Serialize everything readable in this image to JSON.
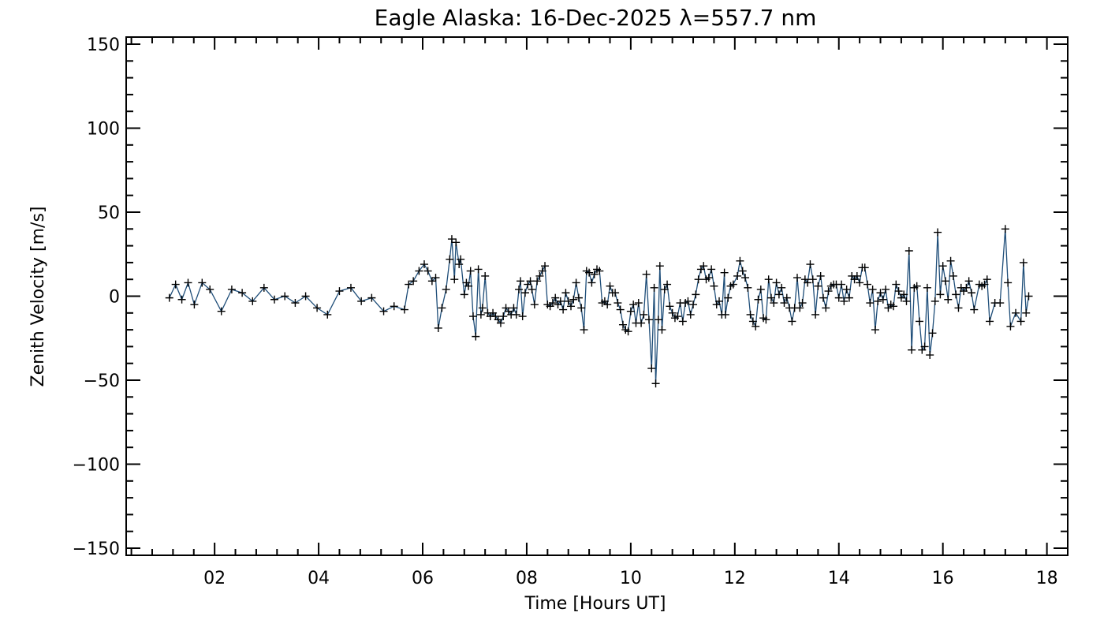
{
  "chart_data": {
    "type": "line",
    "title": "Eagle Alaska: 16-Dec-2025 λ=557.7 nm",
    "xlabel": "Time [Hours UT]",
    "ylabel": "Zenith Velocity [m/s]",
    "xlim": [
      0.3,
      18.4
    ],
    "ylim": [
      -150,
      150
    ],
    "grid": false,
    "marker": "plus",
    "line_color": "#1f4e79",
    "marker_color": "#000000",
    "xticks": [
      {
        "value": 2,
        "label": "02"
      },
      {
        "value": 4,
        "label": "04"
      },
      {
        "value": 6,
        "label": "06"
      },
      {
        "value": 8,
        "label": "08"
      },
      {
        "value": 10,
        "label": "10"
      },
      {
        "value": 12,
        "label": "12"
      },
      {
        "value": 14,
        "label": "14"
      },
      {
        "value": 16,
        "label": "16"
      },
      {
        "value": 18,
        "label": "18"
      }
    ],
    "yticks": [
      {
        "value": 150,
        "label": "150"
      },
      {
        "value": 100,
        "label": "100"
      },
      {
        "value": 50,
        "label": "50"
      },
      {
        "value": 0,
        "label": "0"
      },
      {
        "value": -50,
        "label": "−50"
      },
      {
        "value": -100,
        "label": "−100"
      },
      {
        "value": -150,
        "label": "−150"
      }
    ],
    "series": [
      {
        "name": "Zenith Velocity",
        "points": [
          [
            1.13,
            -1
          ],
          [
            1.25,
            7
          ],
          [
            1.37,
            -2
          ],
          [
            1.49,
            8
          ],
          [
            1.61,
            -5
          ],
          [
            1.76,
            8
          ],
          [
            1.91,
            4
          ],
          [
            2.13,
            -9
          ],
          [
            2.33,
            4
          ],
          [
            2.53,
            2
          ],
          [
            2.73,
            -3
          ],
          [
            2.95,
            5
          ],
          [
            3.15,
            -2
          ],
          [
            3.35,
            0
          ],
          [
            3.55,
            -4
          ],
          [
            3.75,
            0
          ],
          [
            3.97,
            -7
          ],
          [
            4.17,
            -11
          ],
          [
            4.4,
            3
          ],
          [
            4.62,
            5
          ],
          [
            4.82,
            -3
          ],
          [
            5.02,
            -1
          ],
          [
            5.25,
            -9
          ],
          [
            5.45,
            -6
          ],
          [
            5.65,
            -8
          ],
          [
            5.73,
            7
          ],
          [
            5.82,
            9
          ],
          [
            5.93,
            15
          ],
          [
            6.03,
            19
          ],
          [
            6.1,
            15
          ],
          [
            6.18,
            9
          ],
          [
            6.25,
            11
          ],
          [
            6.3,
            -19
          ],
          [
            6.37,
            -7
          ],
          [
            6.45,
            4
          ],
          [
            6.52,
            22
          ],
          [
            6.56,
            34
          ],
          [
            6.61,
            10
          ],
          [
            6.64,
            32
          ],
          [
            6.7,
            19
          ],
          [
            6.73,
            22
          ],
          [
            6.8,
            1
          ],
          [
            6.84,
            8
          ],
          [
            6.88,
            6
          ],
          [
            6.92,
            15
          ],
          [
            6.97,
            -12
          ],
          [
            7.02,
            -24
          ],
          [
            7.07,
            16
          ],
          [
            7.12,
            -11
          ],
          [
            7.15,
            -7
          ],
          [
            7.2,
            12
          ],
          [
            7.25,
            -10
          ],
          [
            7.3,
            -12
          ],
          [
            7.35,
            -10
          ],
          [
            7.4,
            -12
          ],
          [
            7.45,
            -14
          ],
          [
            7.5,
            -16
          ],
          [
            7.55,
            -12
          ],
          [
            7.6,
            -7
          ],
          [
            7.65,
            -9
          ],
          [
            7.7,
            -11
          ],
          [
            7.75,
            -7
          ],
          [
            7.8,
            -11
          ],
          [
            7.85,
            4
          ],
          [
            7.88,
            9
          ],
          [
            7.92,
            -12
          ],
          [
            7.97,
            2
          ],
          [
            8.02,
            7
          ],
          [
            8.07,
            9
          ],
          [
            8.1,
            4
          ],
          [
            8.15,
            -5
          ],
          [
            8.2,
            9
          ],
          [
            8.25,
            12
          ],
          [
            8.3,
            15
          ],
          [
            8.35,
            18
          ],
          [
            8.4,
            -5
          ],
          [
            8.45,
            -6
          ],
          [
            8.5,
            -4
          ],
          [
            8.55,
            -1
          ],
          [
            8.6,
            -5
          ],
          [
            8.65,
            -3
          ],
          [
            8.7,
            -8
          ],
          [
            8.75,
            2
          ],
          [
            8.8,
            -3
          ],
          [
            8.85,
            -6
          ],
          [
            8.9,
            -2
          ],
          [
            8.95,
            8
          ],
          [
            9.0,
            -1
          ],
          [
            9.05,
            -7
          ],
          [
            9.1,
            -20
          ],
          [
            9.15,
            15
          ],
          [
            9.2,
            14
          ],
          [
            9.25,
            8
          ],
          [
            9.3,
            13
          ],
          [
            9.35,
            16
          ],
          [
            9.4,
            15
          ],
          [
            9.45,
            -4
          ],
          [
            9.5,
            -3
          ],
          [
            9.55,
            -5
          ],
          [
            9.6,
            6
          ],
          [
            9.65,
            2
          ],
          [
            9.7,
            2
          ],
          [
            9.75,
            -4
          ],
          [
            9.8,
            -8
          ],
          [
            9.85,
            -17
          ],
          [
            9.9,
            -20
          ],
          [
            9.95,
            -21
          ],
          [
            10.0,
            -9
          ],
          [
            10.05,
            -5
          ],
          [
            10.1,
            -16
          ],
          [
            10.15,
            -4
          ],
          [
            10.2,
            -16
          ],
          [
            10.25,
            -11
          ],
          [
            10.3,
            13
          ],
          [
            10.35,
            -14
          ],
          [
            10.4,
            -43
          ],
          [
            10.45,
            5
          ],
          [
            10.48,
            -52
          ],
          [
            10.53,
            -14
          ],
          [
            10.56,
            18
          ],
          [
            10.6,
            -20
          ],
          [
            10.65,
            4
          ],
          [
            10.7,
            7
          ],
          [
            10.75,
            -6
          ],
          [
            10.8,
            -10
          ],
          [
            10.85,
            -13
          ],
          [
            10.9,
            -12
          ],
          [
            10.95,
            -4
          ],
          [
            11.0,
            -15
          ],
          [
            11.05,
            -4
          ],
          [
            11.1,
            -3
          ],
          [
            11.15,
            -11
          ],
          [
            11.2,
            -5
          ],
          [
            11.25,
            1
          ],
          [
            11.3,
            10
          ],
          [
            11.35,
            16
          ],
          [
            11.4,
            18
          ],
          [
            11.45,
            10
          ],
          [
            11.5,
            11
          ],
          [
            11.55,
            16
          ],
          [
            11.6,
            6
          ],
          [
            11.65,
            -5
          ],
          [
            11.7,
            -3
          ],
          [
            11.75,
            -11
          ],
          [
            11.8,
            14
          ],
          [
            11.82,
            -11
          ],
          [
            11.87,
            -1
          ],
          [
            11.92,
            6
          ],
          [
            11.97,
            7
          ],
          [
            12.05,
            12
          ],
          [
            12.1,
            21
          ],
          [
            12.15,
            15
          ],
          [
            12.2,
            11
          ],
          [
            12.25,
            5
          ],
          [
            12.3,
            -11
          ],
          [
            12.35,
            -15
          ],
          [
            12.4,
            -18
          ],
          [
            12.45,
            -2
          ],
          [
            12.5,
            4
          ],
          [
            12.55,
            -13
          ],
          [
            12.6,
            -14
          ],
          [
            12.65,
            10
          ],
          [
            12.7,
            -1
          ],
          [
            12.75,
            -4
          ],
          [
            12.8,
            8
          ],
          [
            12.85,
            1
          ],
          [
            12.9,
            5
          ],
          [
            12.95,
            -4
          ],
          [
            13.0,
            -1
          ],
          [
            13.05,
            -7
          ],
          [
            13.1,
            -15
          ],
          [
            13.15,
            -7
          ],
          [
            13.2,
            11
          ],
          [
            13.25,
            -7
          ],
          [
            13.3,
            -4
          ],
          [
            13.35,
            10
          ],
          [
            13.4,
            8
          ],
          [
            13.45,
            19
          ],
          [
            13.5,
            10
          ],
          [
            13.55,
            -11
          ],
          [
            13.6,
            6
          ],
          [
            13.65,
            12
          ],
          [
            13.7,
            -1
          ],
          [
            13.75,
            -7
          ],
          [
            13.8,
            3
          ],
          [
            13.85,
            6
          ],
          [
            13.9,
            7
          ],
          [
            13.95,
            7
          ],
          [
            14.0,
            -1
          ],
          [
            14.05,
            7
          ],
          [
            14.1,
            -3
          ],
          [
            14.15,
            4
          ],
          [
            14.2,
            -1
          ],
          [
            14.25,
            12
          ],
          [
            14.3,
            10
          ],
          [
            14.35,
            12
          ],
          [
            14.4,
            8
          ],
          [
            14.45,
            17
          ],
          [
            14.5,
            17
          ],
          [
            14.55,
            7
          ],
          [
            14.6,
            -4
          ],
          [
            14.65,
            4
          ],
          [
            14.7,
            -20
          ],
          [
            14.75,
            -3
          ],
          [
            14.8,
            2
          ],
          [
            14.85,
            -2
          ],
          [
            14.9,
            4
          ],
          [
            14.95,
            -7
          ],
          [
            15.0,
            -5
          ],
          [
            15.05,
            -6
          ],
          [
            15.1,
            7
          ],
          [
            15.15,
            3
          ],
          [
            15.2,
            -1
          ],
          [
            15.25,
            1
          ],
          [
            15.3,
            -3
          ],
          [
            15.35,
            27
          ],
          [
            15.4,
            -32
          ],
          [
            15.45,
            5
          ],
          [
            15.5,
            6
          ],
          [
            15.55,
            -15
          ],
          [
            15.6,
            -32
          ],
          [
            15.65,
            -30
          ],
          [
            15.7,
            5
          ],
          [
            15.75,
            -35
          ],
          [
            15.8,
            -22
          ],
          [
            15.85,
            -3
          ],
          [
            15.9,
            38
          ],
          [
            15.95,
            1
          ],
          [
            16.0,
            18
          ],
          [
            16.05,
            9
          ],
          [
            16.1,
            -2
          ],
          [
            16.15,
            21
          ],
          [
            16.2,
            12
          ],
          [
            16.25,
            1
          ],
          [
            16.3,
            -7
          ],
          [
            16.35,
            5
          ],
          [
            16.4,
            3
          ],
          [
            16.45,
            5
          ],
          [
            16.5,
            9
          ],
          [
            16.55,
            2
          ],
          [
            16.6,
            -8
          ],
          [
            16.7,
            7
          ],
          [
            16.75,
            6
          ],
          [
            16.8,
            7
          ],
          [
            16.85,
            10
          ],
          [
            16.9,
            -15
          ],
          [
            17.0,
            -4
          ],
          [
            17.1,
            -4
          ],
          [
            17.2,
            40
          ],
          [
            17.25,
            8
          ],
          [
            17.3,
            -18
          ],
          [
            17.4,
            -10
          ],
          [
            17.5,
            -15
          ],
          [
            17.55,
            20
          ],
          [
            17.6,
            -10
          ],
          [
            17.65,
            0
          ]
        ]
      }
    ]
  }
}
